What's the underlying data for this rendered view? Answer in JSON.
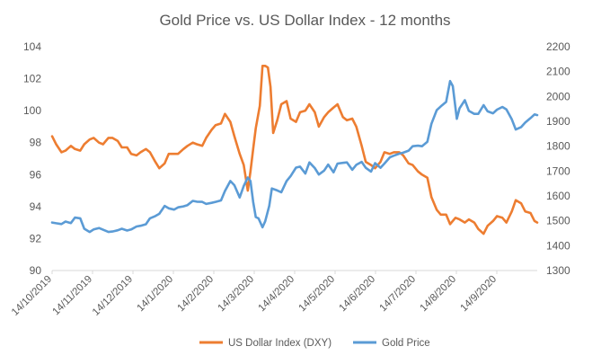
{
  "chart_data": {
    "type": "line",
    "title": "Gold Price vs. US Dollar Index - 12 months",
    "xlabel": "",
    "ylabel_left": "",
    "ylabel_right": "",
    "x_domain": [
      "2019-10-14",
      "2020-10-10"
    ],
    "x_tick_labels": [
      "14/10/2019",
      "14/11/2019",
      "14/12/2019",
      "14/1/2020",
      "14/2/2020",
      "14/3/2020",
      "14/4/2020",
      "14/5/2020",
      "14/6/2020",
      "14/7/2020",
      "14/8/2020",
      "14/9/2020"
    ],
    "y_left": {
      "min": 90,
      "max": 104,
      "ticks": [
        90,
        92,
        94,
        96,
        98,
        100,
        102,
        104
      ]
    },
    "y_right": {
      "min": 1300,
      "max": 2200,
      "ticks": [
        1300,
        1400,
        1500,
        1600,
        1700,
        1800,
        1900,
        2000,
        2100,
        2200
      ]
    },
    "grid": false,
    "legend_position": "bottom",
    "series": [
      {
        "name": "US Dollar Index (DXY)",
        "axis": "left",
        "color": "#ED7D31",
        "points": [
          [
            "2019-10-14",
            98.4
          ],
          [
            "2019-10-17",
            97.9
          ],
          [
            "2019-10-21",
            97.4
          ],
          [
            "2019-10-24",
            97.5
          ],
          [
            "2019-10-28",
            97.8
          ],
          [
            "2019-10-31",
            97.6
          ],
          [
            "2019-11-04",
            97.5
          ],
          [
            "2019-11-07",
            97.9
          ],
          [
            "2019-11-11",
            98.2
          ],
          [
            "2019-11-14",
            98.3
          ],
          [
            "2019-11-18",
            98.0
          ],
          [
            "2019-11-21",
            97.9
          ],
          [
            "2019-11-25",
            98.3
          ],
          [
            "2019-11-28",
            98.3
          ],
          [
            "2019-12-02",
            98.1
          ],
          [
            "2019-12-05",
            97.7
          ],
          [
            "2019-12-09",
            97.7
          ],
          [
            "2019-12-12",
            97.3
          ],
          [
            "2019-12-16",
            97.2
          ],
          [
            "2019-12-19",
            97.4
          ],
          [
            "2019-12-23",
            97.6
          ],
          [
            "2019-12-26",
            97.4
          ],
          [
            "2019-12-30",
            96.8
          ],
          [
            "2020-01-02",
            96.4
          ],
          [
            "2020-01-06",
            96.7
          ],
          [
            "2020-01-09",
            97.3
          ],
          [
            "2020-01-13",
            97.3
          ],
          [
            "2020-01-16",
            97.3
          ],
          [
            "2020-01-20",
            97.6
          ],
          [
            "2020-01-23",
            97.8
          ],
          [
            "2020-01-27",
            98.0
          ],
          [
            "2020-01-30",
            97.9
          ],
          [
            "2020-02-03",
            97.8
          ],
          [
            "2020-02-06",
            98.3
          ],
          [
            "2020-02-10",
            98.8
          ],
          [
            "2020-02-13",
            99.1
          ],
          [
            "2020-02-17",
            99.2
          ],
          [
            "2020-02-20",
            99.8
          ],
          [
            "2020-02-24",
            99.3
          ],
          [
            "2020-02-27",
            98.4
          ],
          [
            "2020-03-02",
            97.3
          ],
          [
            "2020-03-05",
            96.6
          ],
          [
            "2020-03-08",
            95.0
          ],
          [
            "2020-03-10",
            96.2
          ],
          [
            "2020-03-12",
            97.6
          ],
          [
            "2020-03-14",
            98.9
          ],
          [
            "2020-03-17",
            100.3
          ],
          [
            "2020-03-19",
            102.8
          ],
          [
            "2020-03-21",
            102.8
          ],
          [
            "2020-03-23",
            102.7
          ],
          [
            "2020-03-25",
            101.5
          ],
          [
            "2020-03-27",
            98.6
          ],
          [
            "2020-03-30",
            99.4
          ],
          [
            "2020-04-02",
            100.4
          ],
          [
            "2020-04-06",
            100.6
          ],
          [
            "2020-04-09",
            99.5
          ],
          [
            "2020-04-13",
            99.3
          ],
          [
            "2020-04-16",
            99.9
          ],
          [
            "2020-04-20",
            100.0
          ],
          [
            "2020-04-23",
            100.4
          ],
          [
            "2020-04-27",
            99.9
          ],
          [
            "2020-04-30",
            99.0
          ],
          [
            "2020-05-04",
            99.6
          ],
          [
            "2020-05-07",
            99.9
          ],
          [
            "2020-05-11",
            100.2
          ],
          [
            "2020-05-14",
            100.4
          ],
          [
            "2020-05-18",
            99.6
          ],
          [
            "2020-05-21",
            99.4
          ],
          [
            "2020-05-25",
            99.5
          ],
          [
            "2020-05-28",
            99.0
          ],
          [
            "2020-06-01",
            97.8
          ],
          [
            "2020-06-04",
            96.8
          ],
          [
            "2020-06-08",
            96.6
          ],
          [
            "2020-06-11",
            96.4
          ],
          [
            "2020-06-15",
            96.8
          ],
          [
            "2020-06-18",
            97.4
          ],
          [
            "2020-06-22",
            97.3
          ],
          [
            "2020-06-25",
            97.4
          ],
          [
            "2020-06-29",
            97.4
          ],
          [
            "2020-07-02",
            97.2
          ],
          [
            "2020-07-06",
            96.7
          ],
          [
            "2020-07-09",
            96.6
          ],
          [
            "2020-07-13",
            96.2
          ],
          [
            "2020-07-16",
            96.0
          ],
          [
            "2020-07-20",
            95.8
          ],
          [
            "2020-07-23",
            94.6
          ],
          [
            "2020-07-27",
            93.8
          ],
          [
            "2020-07-30",
            93.5
          ],
          [
            "2020-08-03",
            93.5
          ],
          [
            "2020-08-06",
            92.9
          ],
          [
            "2020-08-10",
            93.3
          ],
          [
            "2020-08-13",
            93.2
          ],
          [
            "2020-08-17",
            93.0
          ],
          [
            "2020-08-20",
            93.2
          ],
          [
            "2020-08-24",
            93.0
          ],
          [
            "2020-08-27",
            92.6
          ],
          [
            "2020-08-31",
            92.3
          ],
          [
            "2020-09-03",
            92.8
          ],
          [
            "2020-09-07",
            93.1
          ],
          [
            "2020-09-10",
            93.4
          ],
          [
            "2020-09-14",
            93.3
          ],
          [
            "2020-09-17",
            93.0
          ],
          [
            "2020-09-21",
            93.7
          ],
          [
            "2020-09-24",
            94.4
          ],
          [
            "2020-09-28",
            94.2
          ],
          [
            "2020-10-01",
            93.7
          ],
          [
            "2020-10-05",
            93.6
          ],
          [
            "2020-10-08",
            93.1
          ],
          [
            "2020-10-10",
            93.0
          ]
        ]
      },
      {
        "name": "Gold Price",
        "axis": "right",
        "color": "#5B9BD5",
        "points": [
          [
            "2019-10-14",
            1493
          ],
          [
            "2019-10-17",
            1490
          ],
          [
            "2019-10-21",
            1487
          ],
          [
            "2019-10-24",
            1497
          ],
          [
            "2019-10-28",
            1491
          ],
          [
            "2019-10-31",
            1513
          ],
          [
            "2019-11-04",
            1510
          ],
          [
            "2019-11-07",
            1468
          ],
          [
            "2019-11-11",
            1455
          ],
          [
            "2019-11-14",
            1465
          ],
          [
            "2019-11-18",
            1471
          ],
          [
            "2019-11-21",
            1464
          ],
          [
            "2019-11-25",
            1455
          ],
          [
            "2019-11-28",
            1457
          ],
          [
            "2019-12-02",
            1462
          ],
          [
            "2019-12-05",
            1468
          ],
          [
            "2019-12-09",
            1461
          ],
          [
            "2019-12-12",
            1465
          ],
          [
            "2019-12-16",
            1477
          ],
          [
            "2019-12-19",
            1480
          ],
          [
            "2019-12-23",
            1486
          ],
          [
            "2019-12-26",
            1510
          ],
          [
            "2019-12-30",
            1519
          ],
          [
            "2020-01-02",
            1528
          ],
          [
            "2020-01-06",
            1560
          ],
          [
            "2020-01-09",
            1550
          ],
          [
            "2020-01-13",
            1545
          ],
          [
            "2020-01-16",
            1554
          ],
          [
            "2020-01-20",
            1558
          ],
          [
            "2020-01-23",
            1563
          ],
          [
            "2020-01-27",
            1580
          ],
          [
            "2020-01-30",
            1577
          ],
          [
            "2020-02-03",
            1576
          ],
          [
            "2020-02-06",
            1568
          ],
          [
            "2020-02-10",
            1572
          ],
          [
            "2020-02-13",
            1576
          ],
          [
            "2020-02-17",
            1582
          ],
          [
            "2020-02-20",
            1620
          ],
          [
            "2020-02-24",
            1660
          ],
          [
            "2020-02-27",
            1643
          ],
          [
            "2020-03-02",
            1594
          ],
          [
            "2020-03-05",
            1640
          ],
          [
            "2020-03-08",
            1674
          ],
          [
            "2020-03-10",
            1660
          ],
          [
            "2020-03-12",
            1576
          ],
          [
            "2020-03-14",
            1515
          ],
          [
            "2020-03-16",
            1510
          ],
          [
            "2020-03-19",
            1474
          ],
          [
            "2020-03-21",
            1498
          ],
          [
            "2020-03-24",
            1560
          ],
          [
            "2020-03-26",
            1630
          ],
          [
            "2020-03-30",
            1622
          ],
          [
            "2020-04-02",
            1615
          ],
          [
            "2020-04-06",
            1660
          ],
          [
            "2020-04-09",
            1680
          ],
          [
            "2020-04-13",
            1714
          ],
          [
            "2020-04-16",
            1718
          ],
          [
            "2020-04-20",
            1690
          ],
          [
            "2020-04-23",
            1735
          ],
          [
            "2020-04-27",
            1712
          ],
          [
            "2020-04-30",
            1686
          ],
          [
            "2020-05-04",
            1702
          ],
          [
            "2020-05-07",
            1726
          ],
          [
            "2020-05-11",
            1695
          ],
          [
            "2020-05-14",
            1730
          ],
          [
            "2020-05-18",
            1733
          ],
          [
            "2020-05-21",
            1735
          ],
          [
            "2020-05-25",
            1705
          ],
          [
            "2020-05-28",
            1725
          ],
          [
            "2020-06-01",
            1737
          ],
          [
            "2020-06-04",
            1713
          ],
          [
            "2020-06-08",
            1698
          ],
          [
            "2020-06-11",
            1732
          ],
          [
            "2020-06-15",
            1713
          ],
          [
            "2020-06-18",
            1730
          ],
          [
            "2020-06-22",
            1755
          ],
          [
            "2020-06-25",
            1762
          ],
          [
            "2020-06-29",
            1770
          ],
          [
            "2020-07-02",
            1774
          ],
          [
            "2020-07-06",
            1782
          ],
          [
            "2020-07-09",
            1800
          ],
          [
            "2020-07-13",
            1802
          ],
          [
            "2020-07-16",
            1800
          ],
          [
            "2020-07-20",
            1818
          ],
          [
            "2020-07-23",
            1890
          ],
          [
            "2020-07-27",
            1945
          ],
          [
            "2020-07-30",
            1960
          ],
          [
            "2020-08-03",
            1978
          ],
          [
            "2020-08-06",
            2062
          ],
          [
            "2020-08-08",
            2042
          ],
          [
            "2020-08-11",
            1910
          ],
          [
            "2020-08-13",
            1952
          ],
          [
            "2020-08-17",
            1985
          ],
          [
            "2020-08-20",
            1942
          ],
          [
            "2020-08-24",
            1930
          ],
          [
            "2020-08-27",
            1930
          ],
          [
            "2020-08-31",
            1965
          ],
          [
            "2020-09-03",
            1940
          ],
          [
            "2020-09-07",
            1932
          ],
          [
            "2020-09-10",
            1947
          ],
          [
            "2020-09-14",
            1958
          ],
          [
            "2020-09-17",
            1948
          ],
          [
            "2020-09-21",
            1908
          ],
          [
            "2020-09-24",
            1867
          ],
          [
            "2020-09-28",
            1877
          ],
          [
            "2020-10-01",
            1895
          ],
          [
            "2020-10-05",
            1913
          ],
          [
            "2020-10-08",
            1928
          ],
          [
            "2020-10-10",
            1925
          ]
        ]
      }
    ]
  }
}
